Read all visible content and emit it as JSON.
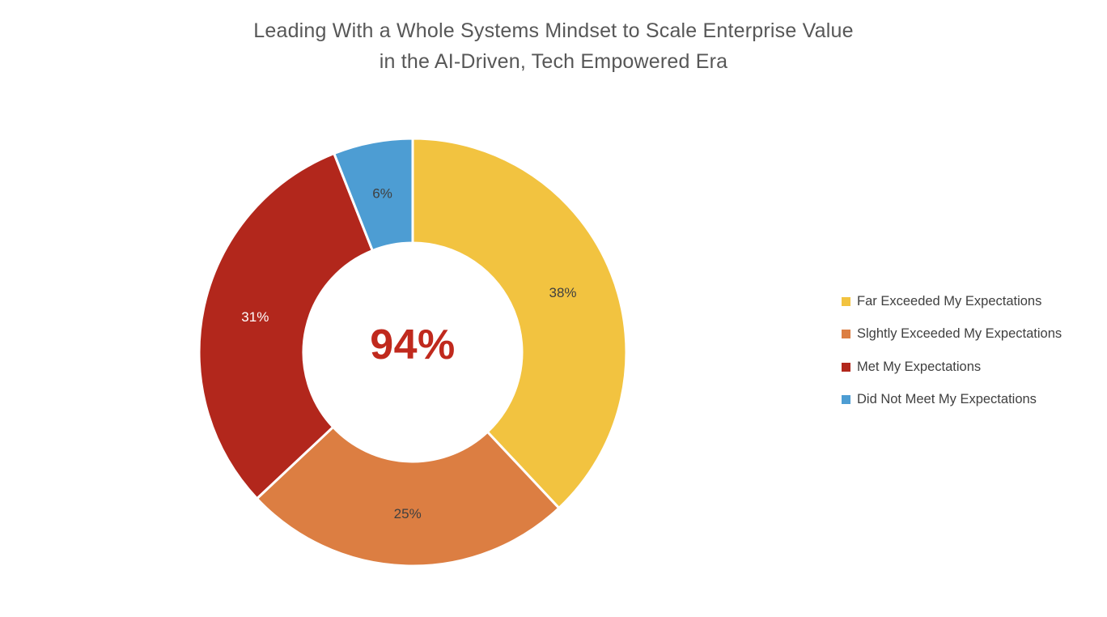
{
  "chart_data": {
    "type": "pie",
    "subtype": "donut",
    "title": "Leading With a Whole Systems Mindset to Scale Enterprise Value in the AI-Driven, Tech Empowered Era",
    "title_lines": [
      "Leading With a Whole Systems Mindset to Scale Enterprise Value",
      "in the AI-Driven, Tech Empowered Era"
    ],
    "title_color": "#575757",
    "categories": [
      "Far Exceeded My Expectations",
      "Slghtly Exceeded My Expectations",
      "Met My Expectations",
      "Did Not Meet My Expectations"
    ],
    "values": [
      38,
      25,
      31,
      6
    ],
    "data_labels": [
      "38%",
      "25%",
      "31%",
      "6%"
    ],
    "colors": [
      "#F2C340",
      "#DC7E42",
      "#B2271C",
      "#4D9DD3"
    ],
    "data_label_colors": [
      "#3F3F3F",
      "#3F3F3F",
      "#FFFFFF",
      "#3F3F3F"
    ],
    "center_label": "94%",
    "center_label_color": "#C0291D",
    "donut_hole_ratio": 0.51,
    "start_angle_deg": 0,
    "direction": "clockwise",
    "legend_position": "right",
    "background": "#FFFFFF"
  }
}
